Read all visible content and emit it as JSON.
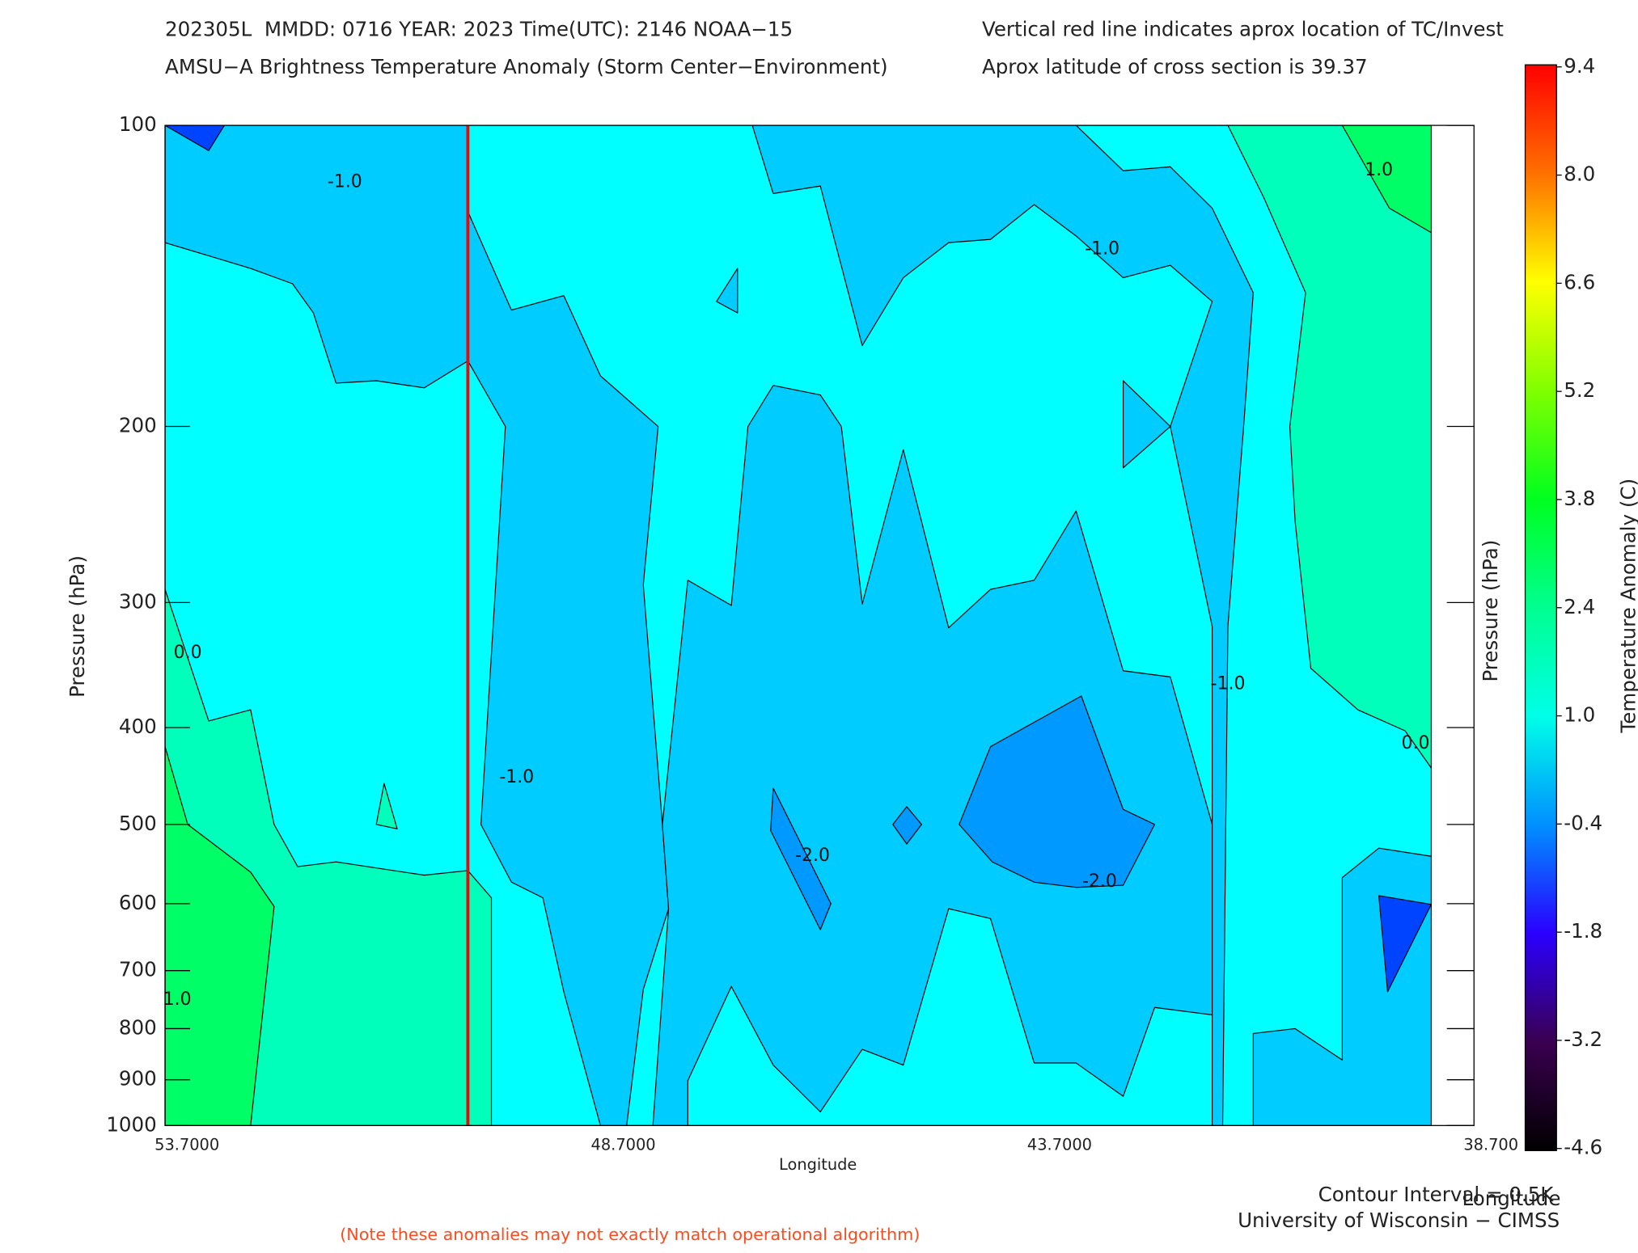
{
  "chart_data": {
    "type": "contour",
    "title": "202305L  MMDD: 0716 YEAR: 2023 Time(UTC): 2146 NOAA−15",
    "subtitle": "AMSU−A Brightness Temperature Anomaly (Storm Center−Environment)",
    "header_notes": [
      "Vertical red line indicates aprox location of TC/Invest",
      "Aprox latitude of cross section is 39.37"
    ],
    "x_label": "Longitude",
    "y_label": "Pressure (hPa)",
    "y2_label": "Pressure (hPa)",
    "x2_label": "Longitude",
    "colorbar_label": "Temperature Anomaly (C)",
    "footer": [
      "Contour Interval = 0.5K",
      "University of Wisconsin − CIMSS"
    ],
    "disclaimer": "(Note these anomalies may not exactly match operational algorithm)",
    "xlim": [
      53.7,
      38.7
    ],
    "xticks": [
      {
        "value": 53.7,
        "label": "53.7000"
      },
      {
        "value": 48.7,
        "label": "48.7000"
      },
      {
        "value": 43.7,
        "label": "43.7000"
      },
      {
        "value": 38.7,
        "label": "38.700"
      }
    ],
    "ylim": [
      100,
      1000
    ],
    "ylog": true,
    "yticks": [
      100,
      200,
      300,
      400,
      500,
      600,
      700,
      800,
      900,
      1000
    ],
    "clim": [
      -4.6,
      9.4
    ],
    "cticks": [
      -4.6,
      -3.2,
      -1.8,
      -0.4,
      {
        "value": 1,
        "label": "1.0"
      },
      2.4,
      3.8,
      5.2,
      6.6,
      {
        "value": 8,
        "label": "8.0"
      },
      9.4
    ],
    "ccolors": [
      "#000000",
      "#3a0050",
      "#2a00ff",
      "#0090ff",
      "#00ffe8",
      "#00ff90",
      "#00ff20",
      "#80ff00",
      "#ffff00",
      "#ff7000",
      "#ff0000"
    ],
    "marker": {
      "lon": 50.23,
      "color": "#ff0000"
    },
    "regions": [
      {
        "color": "#00ffff",
        "lon": [
          53.7,
          39.19,
          39.19,
          53.7
        ],
        "p": [
          100,
          100,
          1000,
          1000
        ]
      },
      {
        "color": "#00ccff",
        "lon": [
          53.7,
          50.23,
          50.23,
          50.73,
          51.28,
          51.74,
          52.0,
          52.24,
          52.72,
          53.7
        ],
        "p": [
          100,
          100,
          172,
          183,
          180,
          181,
          154,
          144,
          139,
          131
        ]
      },
      {
        "color": "#00ccff",
        "lon": [
          50.23,
          49.73,
          49.13,
          48.71,
          48.05,
          48.22,
          48.0,
          47.93,
          48.22,
          48.41,
          48.71,
          49.13,
          49.37,
          49.73,
          50.08,
          49.8,
          50.23
        ],
        "p": [
          122,
          153,
          148,
          178,
          200,
          288,
          500,
          607,
          731,
          1000,
          1000,
          735,
          592,
          571,
          500,
          200,
          172
        ]
      },
      {
        "color": "#00ccff",
        "lon": [
          47.71,
          47.21,
          47.02,
          46.73,
          46.19,
          45.95,
          45.71,
          45.24,
          44.72,
          44.24,
          43.74,
          43.26,
          42.72,
          42.18,
          41.7,
          41.7,
          42.36,
          42.72,
          43.26,
          43.74,
          44.24,
          44.72,
          45.24,
          45.71,
          46.19,
          46.73,
          47.21,
          47.71,
          47.71,
          48.11,
          47.93,
          48.0
        ],
        "p": [
          285,
          302,
          200,
          182,
          186,
          200,
          301,
          211,
          318,
          291,
          285,
          243,
          351,
          356,
          500,
          775,
          762,
          935,
          866,
          866,
          621,
          607,
          870,
          839,
          969,
          870,
          726,
          902,
          1000,
          1000,
          607,
          500
        ]
      },
      {
        "color": "#00ccff",
        "lon": [
          46.97,
          43.26,
          42.72,
          42.18,
          41.7,
          41.23,
          41.34,
          41.52,
          41.58,
          41.7,
          41.7,
          42.18,
          41.7,
          42.18,
          42.72,
          43.26,
          43.74,
          44.24,
          44.72,
          45.24,
          45.71,
          46.19,
          46.73
        ],
        "p": [
          100,
          100,
          111,
          110,
          121,
          147,
          200,
          317,
          1000,
          1000,
          317,
          200,
          150,
          138,
          142,
          129,
          120,
          130,
          131,
          142,
          166,
          115,
          117
        ]
      },
      {
        "color": "#00ccff",
        "lon": [
          47.38,
          47.14,
          47.14
        ],
        "p": [
          150,
          139,
          154
        ]
      },
      {
        "color": "#00ccff",
        "lon": [
          42.72,
          42.18,
          42.72
        ],
        "p": [
          180,
          200,
          220
        ]
      },
      {
        "color": "#00ffbb",
        "lon": [
          53.7,
          53.2,
          52.72,
          52.45,
          52.18,
          51.74,
          50.73,
          50.23,
          49.96,
          49.96,
          53.7
        ],
        "p": [
          291,
          394,
          384,
          500,
          551,
          545,
          562,
          556,
          592,
          1000,
          1000
        ]
      },
      {
        "color": "#00ff66",
        "lon": [
          53.7,
          53.44,
          52.72,
          52.45,
          52.72,
          53.7
        ],
        "p": [
          418,
          500,
          558,
          604,
          1000,
          1000
        ]
      },
      {
        "color": "#00ffbb",
        "lon": [
          51.28,
          51.19,
          51.04
        ],
        "p": [
          500,
          455,
          505
        ]
      },
      {
        "color": "#00ffbb",
        "lon": [
          41.52,
          39.19,
          39.19,
          39.49,
          40.03,
          40.57,
          40.75,
          40.81,
          40.63,
          41.11
        ],
        "p": [
          100,
          100,
          439,
          403,
          384,
          349,
          249,
          200,
          147,
          118
        ]
      },
      {
        "color": "#00ff66",
        "lon": [
          40.21,
          39.19,
          39.19,
          39.67
        ],
        "p": [
          100,
          100,
          128,
          121
        ]
      },
      {
        "color": "#00ccff",
        "lon": [
          41.23,
          41.23,
          40.75,
          40.21,
          40.21,
          39.79,
          39.19,
          39.19
        ],
        "p": [
          1000,
          809,
          800,
          860,
          565,
          528,
          538,
          1000
        ]
      },
      {
        "color": "#0099ff",
        "lon": [
          44.6,
          44.24,
          43.2,
          42.72,
          42.36,
          42.72,
          43.26,
          43.74,
          44.22
        ],
        "p": [
          500,
          418,
          372,
          483,
          500,
          575,
          578,
          571,
          545
        ]
      },
      {
        "color": "#0099ff",
        "lon": [
          45.36,
          45.2,
          45.03,
          45.2
        ],
        "p": [
          500,
          480,
          500,
          523
        ]
      },
      {
        "color": "#0099ff",
        "lon": [
          46.73,
          46.07,
          46.19,
          46.76
        ],
        "p": [
          460,
          600,
          637,
          507
        ]
      },
      {
        "color": "#0044ff",
        "lon": [
          53.7,
          53.02,
          53.2
        ],
        "p": [
          100,
          100,
          106
        ]
      },
      {
        "color": "#0044ff",
        "lon": [
          39.79,
          39.19,
          39.69
        ],
        "p": [
          589,
          601,
          735
        ]
      }
    ],
    "contour_labels": [
      {
        "label": "-1.0",
        "lon": 51.64,
        "p": 114
      },
      {
        "label": "-1.0",
        "lon": 42.96,
        "p": 133
      },
      {
        "label": "1.0",
        "lon": 39.79,
        "p": 111
      },
      {
        "label": "0.0",
        "lon": 53.44,
        "p": 337
      },
      {
        "label": "-1.0",
        "lon": 49.67,
        "p": 449
      },
      {
        "label": "-2.0",
        "lon": 46.28,
        "p": 538
      },
      {
        "label": "-2.0",
        "lon": 42.99,
        "p": 571
      },
      {
        "label": "-1.0",
        "lon": 41.52,
        "p": 362
      },
      {
        "label": "0.0",
        "lon": 39.37,
        "p": 415
      },
      {
        "label": "1.0",
        "lon": 53.56,
        "p": 749
      }
    ]
  }
}
